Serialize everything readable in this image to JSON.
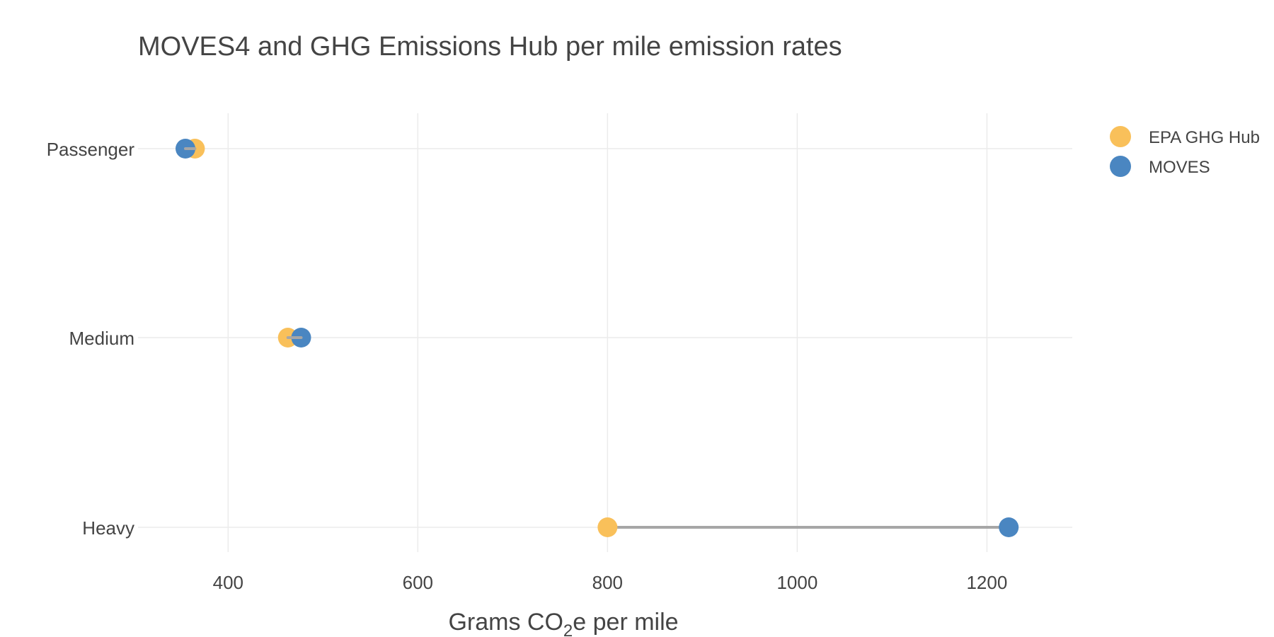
{
  "chart_data": {
    "type": "dumbbell",
    "title": "MOVES4 and GHG Emissions Hub per mile emission rates",
    "xlabel": {
      "prefix": "Grams CO",
      "subscript": "2",
      "suffix": "e per mile"
    },
    "ylabel": "",
    "xlim": [
      305,
      1290
    ],
    "xticks": [
      400,
      600,
      800,
      1000,
      1200
    ],
    "xtick_labels": [
      "400",
      "600",
      "800",
      "1000",
      "1200"
    ],
    "grid": true,
    "legend_position": "top-right",
    "categories": [
      "Passenger",
      "Medium",
      "Heavy"
    ],
    "series": [
      {
        "name": "EPA GHG Hub",
        "color": "#F9C05A",
        "values": [
          365,
          463,
          800
        ]
      },
      {
        "name": "MOVES",
        "color": "#4A86C1",
        "values": [
          355,
          477,
          1223
        ]
      }
    ],
    "segment_color": "#A6A6A6"
  }
}
